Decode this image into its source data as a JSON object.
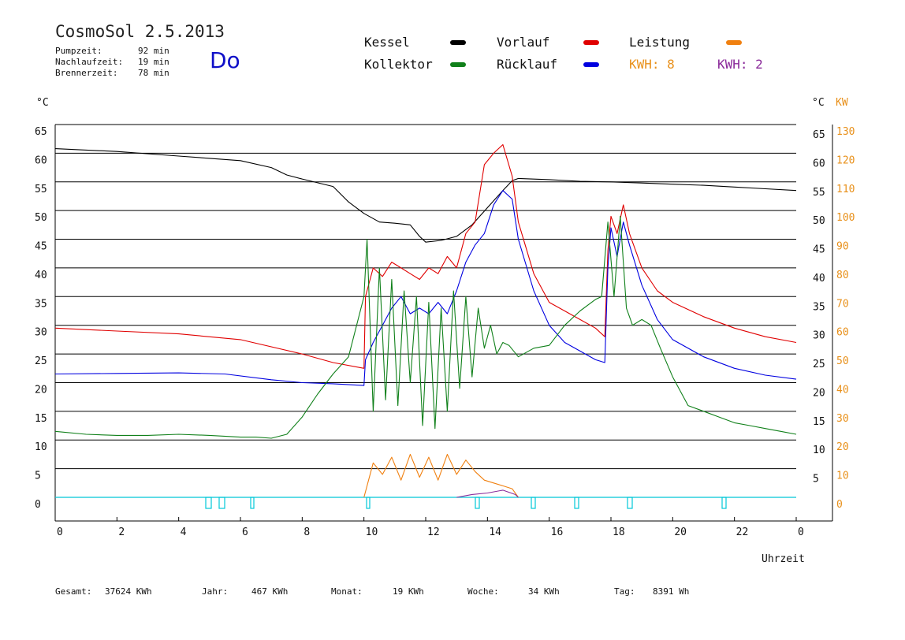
{
  "header": {
    "title": "CosmoSol 2.5.2013",
    "day": "Do",
    "stats": [
      {
        "label": "Pumpzeit:",
        "value": "92 min"
      },
      {
        "label": "Nachlaufzeit:",
        "value": "19 min"
      },
      {
        "label": "Brennerzeit:",
        "value": "78 min"
      }
    ]
  },
  "legend": {
    "kessel": {
      "label": "Kessel",
      "color": "#000000"
    },
    "vorlauf": {
      "label": "Vorlauf",
      "color": "#e00000"
    },
    "leistung": {
      "label": "Leistung",
      "color": "#f08010"
    },
    "kollektor": {
      "label": "Kollektor",
      "color": "#10801a"
    },
    "ruecklauf": {
      "label": "Rücklauf",
      "color": "#0000e0"
    },
    "kwh1": {
      "label": "KWH: 8",
      "color": "#e8901a"
    },
    "kwh2": {
      "label": "KWH: 2",
      "color": "#8a2a9a"
    }
  },
  "footer": {
    "gesamt_label": "Gesamt:",
    "gesamt_value": "37624 KWh",
    "jahr_label": "Jahr:",
    "jahr_value": "467 KWh",
    "monat_label": "Monat:",
    "monat_value": "19 KWh",
    "woche_label": "Woche:",
    "woche_value": "34 KWh",
    "tag_label": "Tag:",
    "tag_value": "8391 Wh"
  },
  "chart_data": {
    "type": "line",
    "xlabel": "Uhrzeit",
    "ylabel_left": "°C",
    "ylabel_right_1": "°C",
    "ylabel_right_2": "KW",
    "xlim": [
      0,
      24
    ],
    "ylim": [
      0,
      65
    ],
    "y2lim": [
      0,
      130
    ],
    "x_ticks": [
      "0",
      "2",
      "4",
      "6",
      "8",
      "10",
      "12",
      "14",
      "16",
      "18",
      "20",
      "22",
      "0"
    ],
    "y_ticks": [
      "0",
      "5",
      "10",
      "15",
      "20",
      "25",
      "30",
      "35",
      "40",
      "45",
      "50",
      "55",
      "60",
      "65"
    ],
    "y_ticks_right": [
      "5",
      "10",
      "15",
      "20",
      "25",
      "30",
      "35",
      "40",
      "45",
      "50",
      "55",
      "60",
      "65"
    ],
    "y2_ticks": [
      "0",
      "10",
      "20",
      "30",
      "40",
      "50",
      "60",
      "70",
      "80",
      "90",
      "100",
      "110",
      "120",
      "130"
    ],
    "grid": true,
    "legend_position": "top",
    "series": [
      {
        "name": "Kessel",
        "color": "#000000",
        "x": [
          0,
          2,
          4,
          6,
          7,
          7.5,
          8,
          9,
          9.5,
          10,
          10.5,
          11,
          11.5,
          11.8,
          12,
          12.5,
          13,
          13.5,
          14,
          14.5,
          14.8,
          15,
          16,
          17,
          18,
          19,
          20,
          21,
          22,
          23,
          24
        ],
        "y": [
          60.8,
          60.3,
          59.5,
          58.7,
          57.5,
          56.2,
          55.5,
          54.2,
          51.5,
          49.5,
          48.0,
          47.8,
          47.5,
          45.5,
          44.5,
          44.8,
          45.5,
          47.5,
          50.5,
          53.5,
          55.2,
          55.6,
          55.4,
          55.1,
          55.0,
          54.8,
          54.6,
          54.4,
          54.1,
          53.8,
          53.5
        ]
      },
      {
        "name": "Vorlauf",
        "color": "#e00000",
        "x": [
          0,
          2,
          4,
          6,
          8,
          9,
          10,
          10.05,
          10.3,
          10.6,
          10.9,
          11.2,
          11.5,
          11.8,
          12.1,
          12.4,
          12.7,
          13.0,
          13.3,
          13.6,
          13.9,
          14.2,
          14.5,
          14.8,
          15.0,
          15.5,
          16.0,
          16.5,
          17.0,
          17.5,
          17.8,
          17.9,
          18.0,
          18.2,
          18.4,
          18.6,
          19.0,
          19.5,
          20,
          21,
          22,
          23,
          24
        ],
        "y": [
          29.5,
          29.0,
          28.5,
          27.5,
          25.0,
          23.5,
          22.5,
          35.0,
          40.0,
          38.5,
          41.0,
          40.0,
          39.0,
          38.0,
          40.0,
          39.0,
          42.0,
          40.0,
          46.0,
          48.0,
          58.0,
          60.0,
          61.5,
          56.0,
          48.0,
          39.0,
          34.0,
          32.5,
          31.0,
          29.5,
          28.0,
          43.0,
          49.0,
          46.0,
          51.0,
          46.0,
          40.0,
          36.0,
          34.0,
          31.5,
          29.5,
          28.0,
          27.0
        ]
      },
      {
        "name": "Rücklauf",
        "color": "#0000e0",
        "x": [
          0,
          2,
          4,
          5.5,
          7,
          8,
          9,
          10,
          10.05,
          10.3,
          10.6,
          10.9,
          11.2,
          11.5,
          11.8,
          12.1,
          12.4,
          12.7,
          13.0,
          13.3,
          13.6,
          13.9,
          14.2,
          14.5,
          14.8,
          15.0,
          15.5,
          16.0,
          16.5,
          17.0,
          17.5,
          17.8,
          17.9,
          18.0,
          18.2,
          18.4,
          18.6,
          19.0,
          19.5,
          20,
          21,
          22,
          23,
          24
        ],
        "y": [
          21.5,
          21.6,
          21.7,
          21.5,
          20.5,
          20.0,
          19.8,
          19.5,
          24.0,
          27.0,
          30.0,
          33.0,
          35.0,
          32.0,
          33.0,
          32.0,
          34.0,
          32.0,
          36.0,
          41.0,
          44.0,
          46.0,
          51.0,
          53.5,
          52.0,
          45.0,
          36.0,
          30.0,
          27.0,
          25.5,
          24.0,
          23.5,
          40.0,
          47.0,
          42.0,
          48.0,
          44.0,
          37.0,
          31.0,
          27.5,
          24.5,
          22.5,
          21.3,
          20.6
        ]
      },
      {
        "name": "Kollektor",
        "color": "#10801a",
        "x": [
          0,
          1,
          2,
          3,
          4,
          5,
          6,
          6.5,
          7,
          7.5,
          8,
          8.5,
          9,
          9.5,
          10.0,
          10.1,
          10.3,
          10.5,
          10.7,
          10.9,
          11.1,
          11.3,
          11.5,
          11.7,
          11.9,
          12.1,
          12.3,
          12.5,
          12.7,
          12.9,
          13.1,
          13.3,
          13.5,
          13.7,
          13.9,
          14.1,
          14.3,
          14.5,
          14.7,
          15.0,
          15.5,
          16,
          16.5,
          17,
          17.5,
          17.7,
          17.9,
          18.1,
          18.3,
          18.5,
          18.7,
          19.0,
          19.3,
          19.6,
          20,
          20.5,
          21,
          21.5,
          22,
          22.5,
          23,
          23.5,
          24
        ],
        "y": [
          11.5,
          11.0,
          10.8,
          10.8,
          11.0,
          10.8,
          10.5,
          10.5,
          10.3,
          11.0,
          14.0,
          18.0,
          21.5,
          24.5,
          35.0,
          45.0,
          15.0,
          40.0,
          17.0,
          38.0,
          16.0,
          36.0,
          20.0,
          35.0,
          12.5,
          34.0,
          12.0,
          33.0,
          15.0,
          36.0,
          19.0,
          35.0,
          21.0,
          33.0,
          26.0,
          30.0,
          25.0,
          27.0,
          26.5,
          24.5,
          26.0,
          26.5,
          30.0,
          32.5,
          34.5,
          35.0,
          48.0,
          35.0,
          49.0,
          33.0,
          30.0,
          31.0,
          30.0,
          26.0,
          21.0,
          16.0,
          15.0,
          14.0,
          13.0,
          12.5,
          12.0,
          11.5,
          11.0
        ]
      },
      {
        "name": "Leistung",
        "color": "#f08010",
        "axis": "right",
        "x": [
          10.0,
          10.3,
          10.6,
          10.9,
          11.2,
          11.5,
          11.8,
          12.1,
          12.4,
          12.7,
          13.0,
          13.3,
          13.6,
          13.9,
          14.2,
          14.5,
          14.8,
          15.0
        ],
        "y": [
          0,
          12,
          8,
          14,
          6,
          15,
          7,
          14,
          6,
          15,
          8,
          13,
          9,
          6,
          5,
          4,
          3,
          0
        ]
      },
      {
        "name": "KWH: 2",
        "color": "#8a2a9a",
        "axis": "right",
        "x": [
          13.0,
          13.5,
          14.0,
          14.5,
          14.9,
          15.0
        ],
        "y": [
          0,
          1,
          1.5,
          2.5,
          1,
          0
        ]
      }
    ]
  }
}
